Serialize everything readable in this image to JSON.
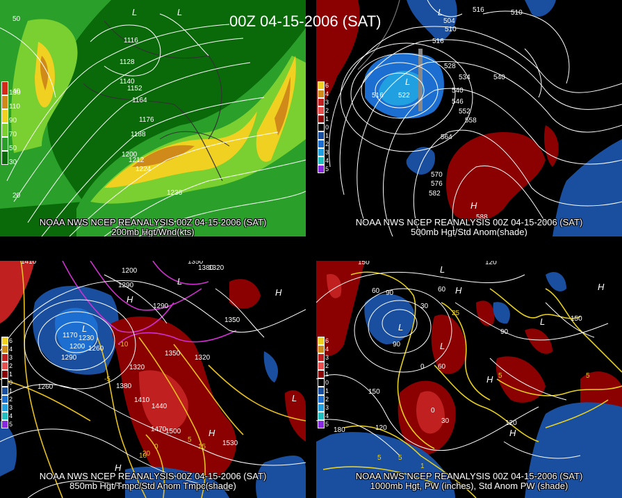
{
  "title": "00Z 04-15-2006 (SAT)",
  "panels": [
    {
      "id": "p200",
      "caption_line1": "NOAA NWS NCEP REANALYSIS 00Z 04-15-2006 (SAT)",
      "caption_line2": "200mb Hgt/Wnd(kts)",
      "legend_labels": [
        "130",
        "110",
        "90",
        "70",
        "50",
        "30"
      ],
      "legend_colors": [
        "#d42a1a",
        "#d08a1a",
        "#f0d020",
        "#7ad030",
        "#2aa02a",
        "#0a6a0a"
      ],
      "contour_labels": [
        "1116",
        "1128",
        "1140",
        "1152",
        "1164",
        "1176",
        "1188",
        "1200",
        "1212",
        "1224",
        "1236"
      ],
      "edge_labels": [
        "50",
        "40",
        "20"
      ],
      "high_low": [
        "L",
        "L"
      ]
    },
    {
      "id": "p500",
      "caption_line1": "NOAA NWS NCEP REANALYSIS 00Z 04-15-2006 (SAT)",
      "caption_line2": "500mb Hgt/Std Anom(shade)",
      "legend_labels": [
        "6",
        "4",
        "3",
        "2",
        "1",
        "0",
        "1",
        "2",
        "3",
        "4",
        "5"
      ],
      "legend_colors": [
        "#f0d020",
        "#d08a1a",
        "#c02020",
        "#e85050",
        "#8b0000",
        "#000000",
        "#1a4fa0",
        "#1c6fd0",
        "#20a0e0",
        "#20c0c0",
        "#8a2ae0"
      ],
      "contour_labels": [
        "504",
        "510",
        "516",
        "516",
        "522",
        "528",
        "534",
        "540",
        "540",
        "546",
        "552",
        "558",
        "564",
        "570",
        "576",
        "582",
        "588"
      ],
      "edge_labels": [
        "516",
        "510"
      ],
      "high_low": [
        "L",
        "L",
        "H"
      ]
    },
    {
      "id": "p850",
      "caption_line1": "NOAA NWS NCEP REANALYSIS 00Z 04-15-2006 (SAT)",
      "caption_line2": "850mb Hgt/Tmpc/Std Anom Tmpc(shade)",
      "legend_labels": [
        "6",
        "4",
        "3",
        "2",
        "1",
        "0",
        "1",
        "2",
        "3",
        "4",
        "5"
      ],
      "legend_colors": [
        "#f0d020",
        "#d08a1a",
        "#c02020",
        "#e85050",
        "#8b0000",
        "#000000",
        "#1a4fa0",
        "#1c6fd0",
        "#20a0e0",
        "#20c0c0",
        "#8a2ae0"
      ],
      "contour_labels": [
        "1410",
        "1200",
        "1290",
        "1170",
        "1200",
        "1230",
        "1260",
        "1290",
        "1320",
        "1350",
        "1380",
        "1410",
        "1440",
        "1470",
        "1500",
        "1530",
        "1320",
        "1350",
        "1380",
        "1350",
        "1320",
        "1290",
        "1260"
      ],
      "temp_labels": [
        "-10",
        "-5",
        "0",
        "5",
        "10",
        "15",
        "20"
      ],
      "high_low": [
        "L",
        "L",
        "H",
        "H",
        "L",
        "H",
        "H"
      ]
    },
    {
      "id": "p1000",
      "caption_line1": "NOAA NWS NCEP REANALYSIS 00Z 04-15-2006 (SAT)",
      "caption_line2": "1000mb Hgt, PW (inches), Std Anom PW (shade)",
      "legend_labels": [
        "6",
        "4",
        "3",
        "2",
        "1",
        "0",
        "1",
        "2",
        "3",
        "4",
        "5"
      ],
      "legend_colors": [
        "#f0d020",
        "#d08a1a",
        "#c02020",
        "#e85050",
        "#8b0000",
        "#000000",
        "#1a4fa0",
        "#1c6fd0",
        "#20a0e0",
        "#20c0c0",
        "#8a2ae0"
      ],
      "contour_labels": [
        "150",
        "120",
        "90",
        "60",
        "30",
        "0",
        "60",
        "90",
        "120",
        "150",
        "180",
        "120",
        "90",
        "60",
        "30",
        "0",
        "150"
      ],
      "pw_labels": [
        "25",
        "5",
        "5",
        "5",
        "1",
        "5"
      ],
      "high_low": [
        "L",
        "L",
        "H",
        "L",
        "L",
        "H",
        "H",
        "H"
      ]
    }
  ]
}
